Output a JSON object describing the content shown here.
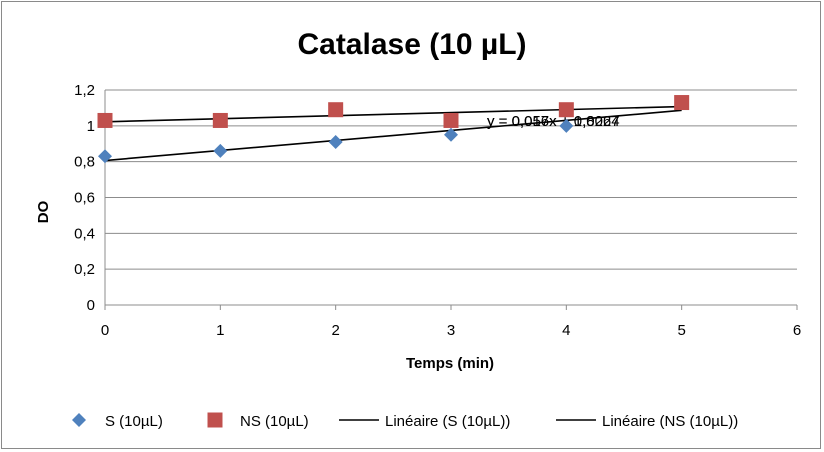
{
  "chart_data": {
    "type": "scatter",
    "title": "Catalase (10 µL)",
    "xlabel": "Temps (min)",
    "ylabel": "DO",
    "xlim": [
      0,
      6
    ],
    "ylim": [
      0,
      1.2
    ],
    "x_ticks": [
      "0",
      "1",
      "2",
      "3",
      "4",
      "5",
      "6"
    ],
    "y_ticks": [
      "0",
      "0,2",
      "0,4",
      "0,6",
      "0,8",
      "1",
      "1,2"
    ],
    "grid": "horizontal",
    "legend_position": "bottom",
    "series": [
      {
        "name": "S (10µL)",
        "marker": "diamond",
        "color": "#4F81BD",
        "x": [
          0,
          1,
          2,
          3,
          4
        ],
        "y": [
          0.83,
          0.86,
          0.91,
          0.95,
          1.0
        ]
      },
      {
        "name": "NS (10µL)",
        "marker": "square",
        "color": "#C0504D",
        "x": [
          0,
          1,
          2,
          3,
          4,
          5
        ],
        "y": [
          1.03,
          1.03,
          1.09,
          1.03,
          1.09,
          1.13
        ]
      }
    ],
    "trendlines": [
      {
        "name": "Linéaire (S (10µL))",
        "color": "#000000",
        "x": [
          0,
          5
        ],
        "y": [
          0.8064,
          1.0864
        ],
        "equation": "y = 0,056x + 0,8064"
      },
      {
        "name": "Linéaire (NS (10µL))",
        "color": "#000000",
        "x": [
          0,
          5
        ],
        "y": [
          1.0227,
          1.1077
        ],
        "equation": "y = 0,017x + 1,0227"
      }
    ]
  }
}
